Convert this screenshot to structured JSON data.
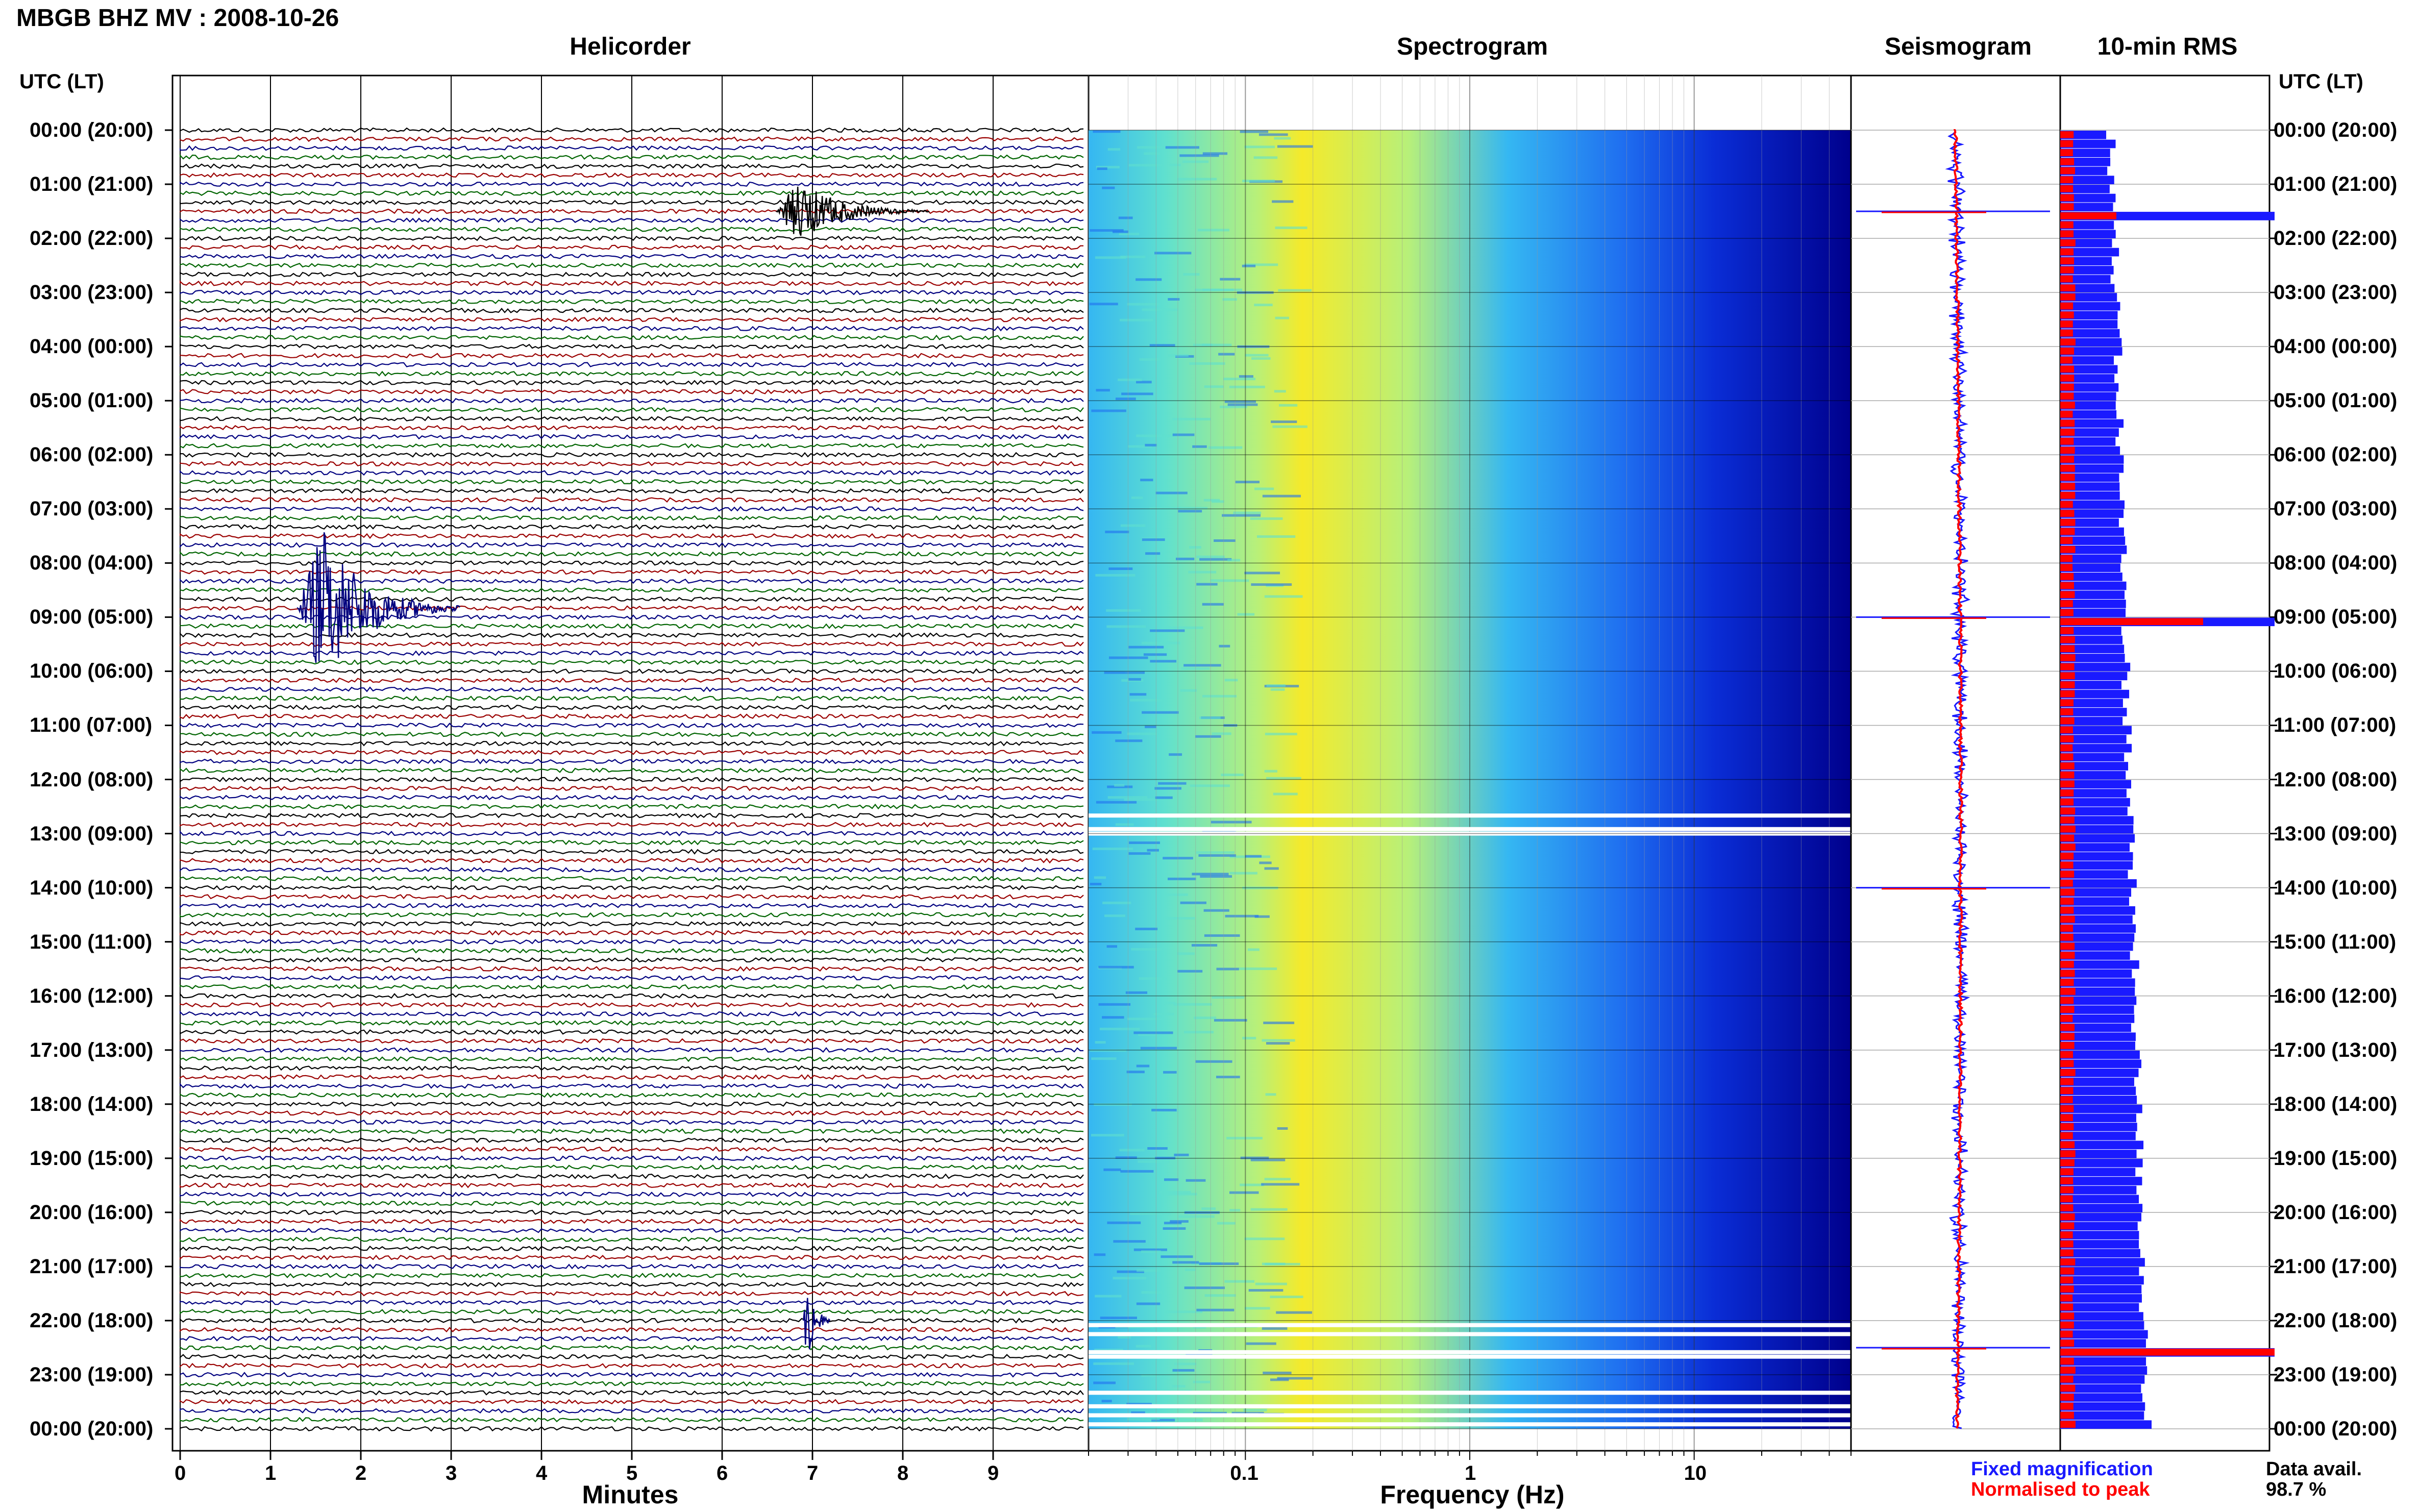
{
  "title": "MBGB BHZ MV : 2008-10-26",
  "panels": {
    "helicorder": "Helicorder",
    "spectrogram": "Spectrogram",
    "seismogram": "Seismogram",
    "rms": "10-min RMS"
  },
  "utc_header": "UTC (LT)",
  "time_labels": [
    "00:00 (20:00)",
    "01:00 (21:00)",
    "02:00 (22:00)",
    "03:00 (23:00)",
    "04:00 (00:00)",
    "05:00 (01:00)",
    "06:00 (02:00)",
    "07:00 (03:00)",
    "08:00 (04:00)",
    "09:00 (05:00)",
    "10:00 (06:00)",
    "11:00 (07:00)",
    "12:00 (08:00)",
    "13:00 (09:00)",
    "14:00 (10:00)",
    "15:00 (11:00)",
    "16:00 (12:00)",
    "17:00 (13:00)",
    "18:00 (14:00)",
    "19:00 (15:00)",
    "20:00 (16:00)",
    "21:00 (17:00)",
    "22:00 (18:00)",
    "23:00 (19:00)",
    "00:00 (20:00)"
  ],
  "legend": {
    "fixed": "Fixed magnification",
    "normalised": "Normalised to peak",
    "fixed_color": "#1a1aff",
    "normalised_color": "#ff0000"
  },
  "availability": {
    "label": "Data avail.",
    "value": "98.7 %"
  },
  "chart_data": [
    {
      "type": "line",
      "name": "helicorder",
      "xlabel": "Minutes",
      "xticks": [
        "0",
        "1",
        "2",
        "3",
        "4",
        "5",
        "6",
        "7",
        "8",
        "9"
      ],
      "xlim": [
        0,
        10
      ],
      "trace_colors": [
        "#000000",
        "#9a0000",
        "#00007f",
        "#006400"
      ],
      "events": [
        {
          "start_utc": "01:30",
          "minute": 6.6,
          "duration_min": 1.7,
          "peak": 0.9
        },
        {
          "start_utc": "08:50",
          "minute": 1.3,
          "duration_min": 1.8,
          "peak": 2.3
        },
        {
          "start_utc": "22:00",
          "minute": 6.9,
          "duration_min": 0.3,
          "peak": 1.5
        }
      ]
    },
    {
      "type": "heatmap",
      "name": "spectrogram",
      "xlabel": "Frequency (Hz)",
      "xscale": "log",
      "xticks": [
        "0.1",
        "1",
        "10"
      ],
      "xlim": [
        0.02,
        50
      ],
      "colormap": [
        "#00008c",
        "#0a2dd6",
        "#1f6ff0",
        "#35b7f2",
        "#5fe0cf",
        "#b7f07a",
        "#f5ea2a"
      ],
      "gaps_utc": [
        "12:40",
        "12:55",
        "13:00",
        "22:05",
        "22:15",
        "22:35",
        "22:40",
        "23:20",
        "23:35",
        "23:45",
        "23:55"
      ]
    },
    {
      "type": "line",
      "name": "seismogram",
      "spikes_utc": [
        "01:30",
        "09:00",
        "14:00",
        "22:30"
      ]
    },
    {
      "type": "bar",
      "name": "10-min RMS",
      "series": [
        {
          "name": "Fixed magnification"
        },
        {
          "name": "Normalised to peak"
        }
      ],
      "spikes_utc": [
        "01:30",
        "09:00",
        "22:30"
      ]
    }
  ]
}
